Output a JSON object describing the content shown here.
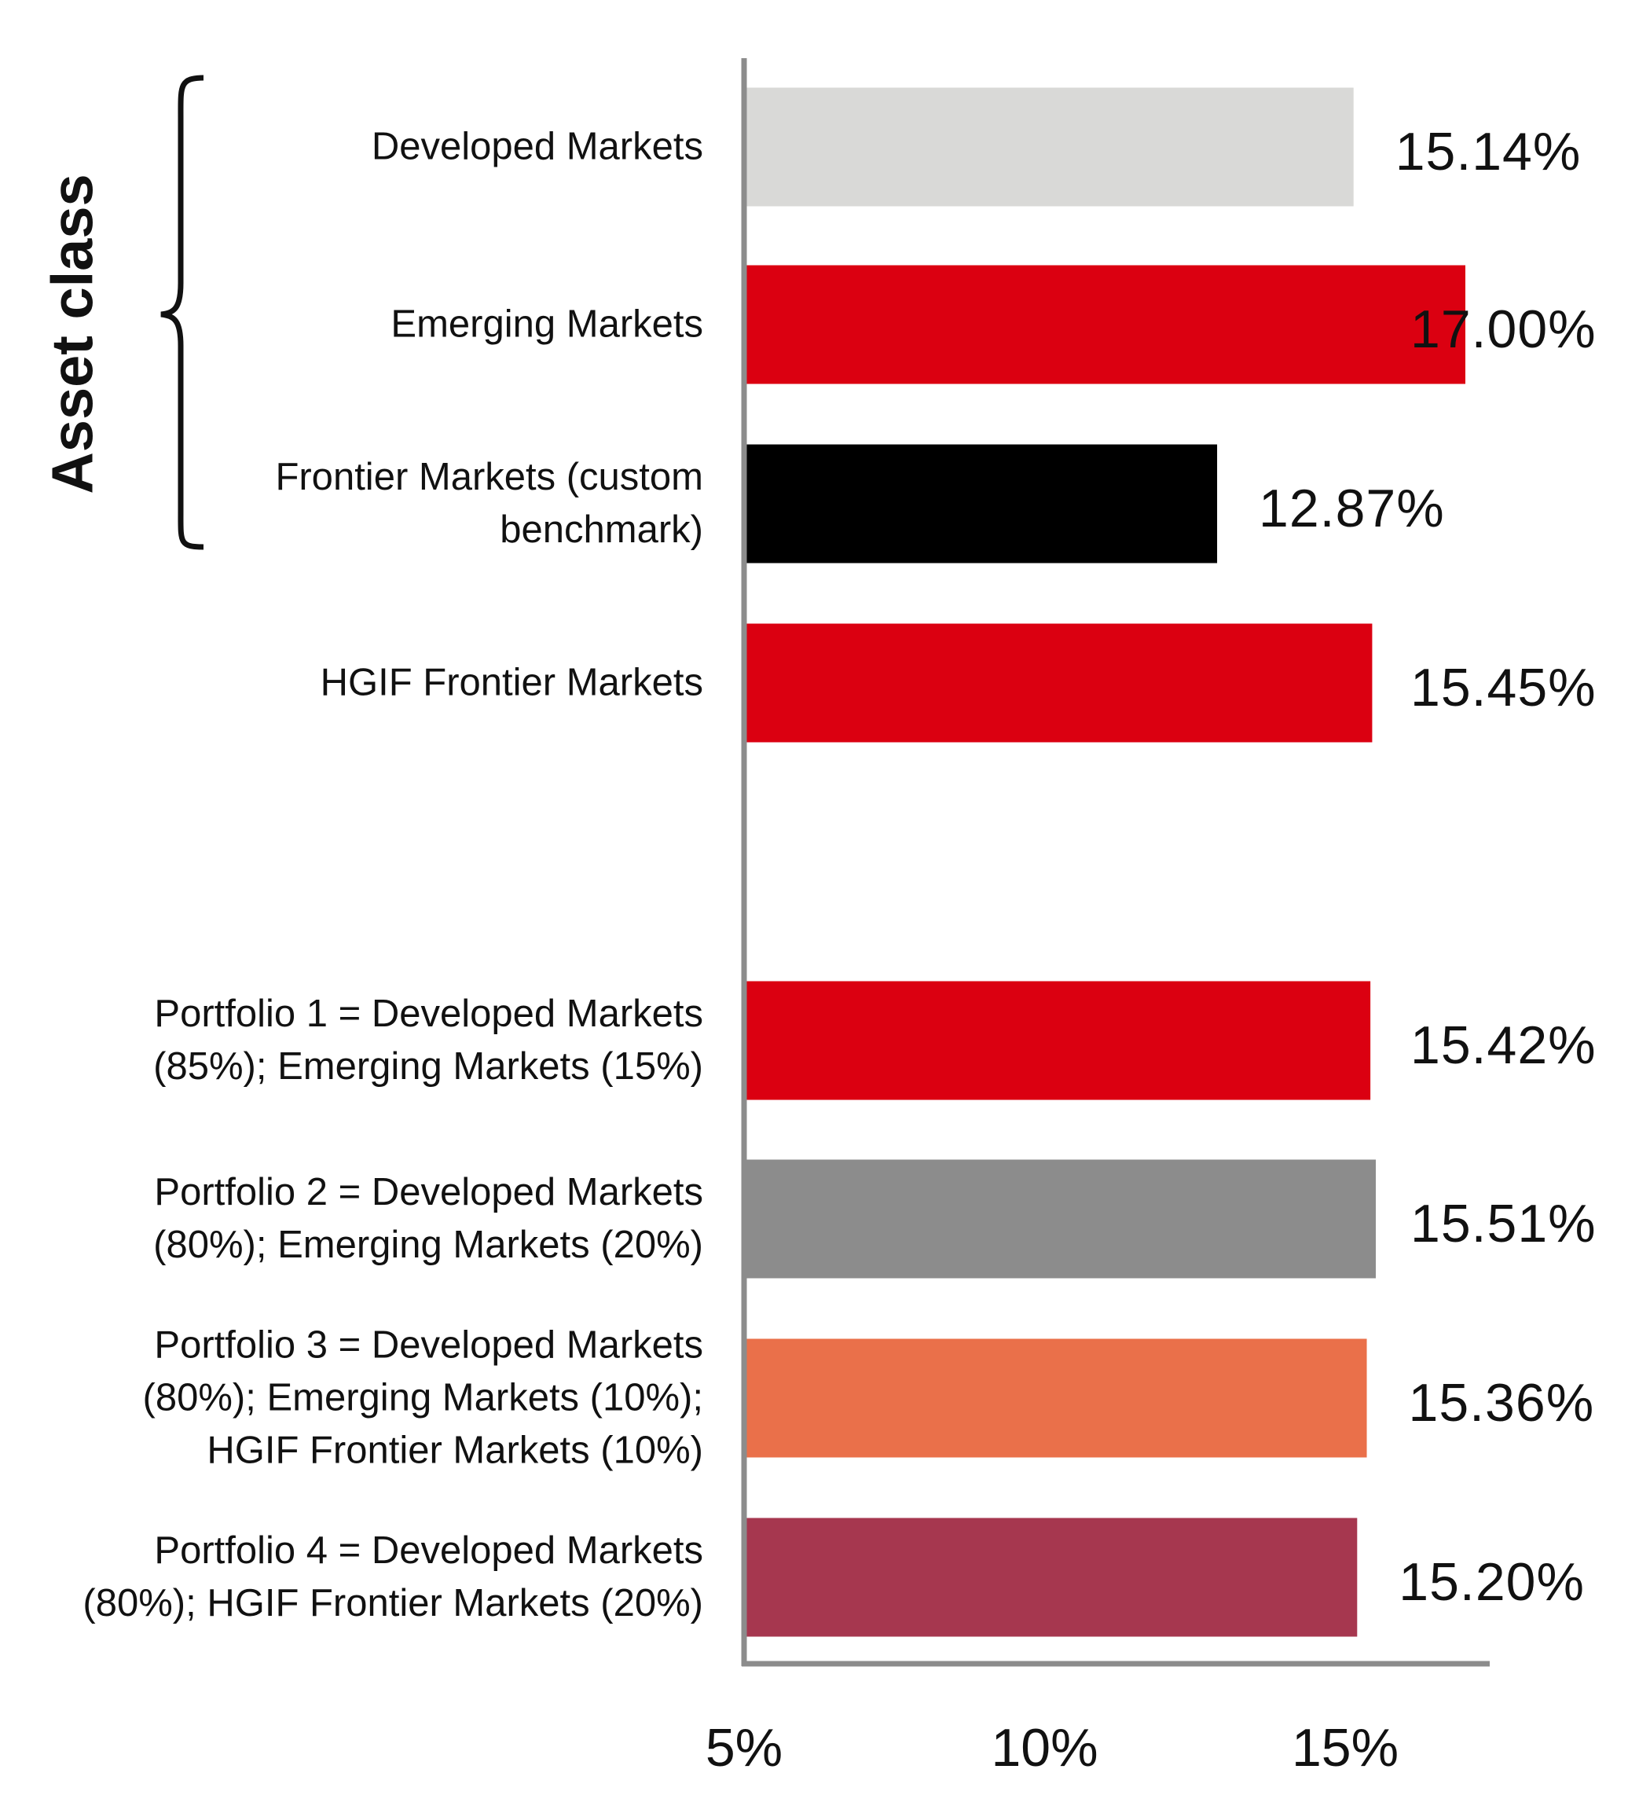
{
  "chart_data": {
    "type": "bar",
    "orientation": "horizontal",
    "group_label": "Asset class",
    "categories": [
      "Developed Markets",
      "Emerging Markets",
      "Frontier Markets (custom\nbenchmark)",
      "HGIF Frontier Markets",
      "Portfolio 1 = Developed Markets\n(85%); Emerging Markets (15%)",
      "Portfolio 2 = Developed Markets\n(80%); Emerging Markets (20%)",
      "Portfolio 3 = Developed Markets\n(80%); Emerging Markets (10%);\nHGIF Frontier Markets (10%)",
      "Portfolio 4 = Developed Markets\n(80%); HGIF Frontier Markets (20%)"
    ],
    "values": [
      15.14,
      17.0,
      12.87,
      15.45,
      15.42,
      15.51,
      15.36,
      15.2
    ],
    "value_labels": [
      "15.14%",
      "17.00%",
      "12.87%",
      "15.45%",
      "15.42%",
      "15.51%",
      "15.36%",
      "15.20%"
    ],
    "colors": [
      "#d9d9d7",
      "#db0011",
      "#000000",
      "#db0011",
      "#db0011",
      "#8c8c8c",
      "#ea704a",
      "#a6374f"
    ],
    "xlim": [
      5,
      17.5
    ],
    "xticks": [
      5,
      10,
      15
    ],
    "xtick_labels": [
      "5%",
      "10%",
      "15%"
    ],
    "grid": false,
    "axis_color": "#8c8c8c"
  }
}
